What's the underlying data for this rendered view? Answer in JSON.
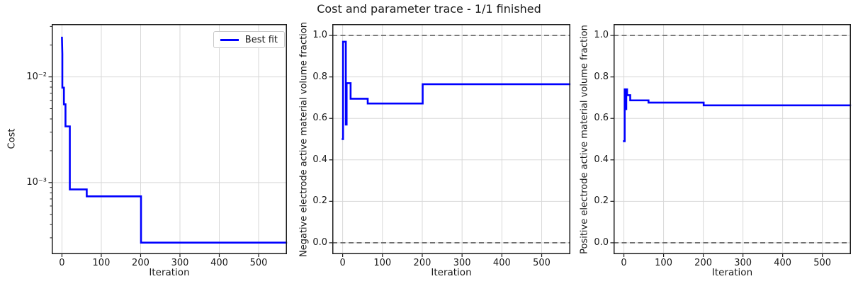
{
  "figure": {
    "title": "Cost and parameter trace - 1/1 finished",
    "background_color": "#ffffff",
    "text_color": "#1a1a1a",
    "grid_color": "#d8d8d8",
    "spine_color": "#1c1c1c",
    "bound_line_color": "#6f6f6f",
    "trace_color": "#0000ff"
  },
  "legend": {
    "label": "Best fit",
    "line_color": "#0000ff",
    "position": "upper right"
  },
  "chart_data": [
    {
      "type": "line",
      "title": "",
      "xlabel": "Iteration",
      "ylabel": "Cost",
      "yscale": "log",
      "grid": true,
      "xlim": [
        -26,
        572
      ],
      "ylim": [
        0.00021,
        0.0316
      ],
      "xticks": [
        {
          "value": 0,
          "label": "0"
        },
        {
          "value": 100,
          "label": "100"
        },
        {
          "value": 200,
          "label": "200"
        },
        {
          "value": 300,
          "label": "300"
        },
        {
          "value": 400,
          "label": "400"
        },
        {
          "value": 500,
          "label": "500"
        }
      ],
      "yticks": [
        {
          "value": 0.01,
          "label": "10⁻²"
        },
        {
          "value": 0.001,
          "label": "10⁻³"
        }
      ],
      "hlines": [],
      "legend": [
        "Best fit"
      ],
      "series": [
        {
          "name": "Best fit",
          "color": "#0000ff",
          "x": [
            0,
            1,
            1,
            5,
            5,
            9,
            9,
            20,
            20,
            63,
            63,
            201,
            201,
            570
          ],
          "y": [
            0.0235,
            0.0165,
            0.0079,
            0.0079,
            0.0055,
            0.0055,
            0.0034,
            0.0034,
            0.00086,
            0.00086,
            0.00074,
            0.00074,
            0.00027,
            0.00027
          ]
        }
      ]
    },
    {
      "type": "line",
      "title": "Cost and parameter trace - 1/1 finished",
      "xlabel": "Iteration",
      "ylabel": "Negative electrode active material volume fraction",
      "yscale": "linear",
      "grid": true,
      "xlim": [
        -26,
        572
      ],
      "ylim": [
        -0.055,
        1.055
      ],
      "xticks": [
        {
          "value": 0,
          "label": "0"
        },
        {
          "value": 100,
          "label": "100"
        },
        {
          "value": 200,
          "label": "200"
        },
        {
          "value": 300,
          "label": "300"
        },
        {
          "value": 400,
          "label": "400"
        },
        {
          "value": 500,
          "label": "500"
        }
      ],
      "yticks": [
        {
          "value": 0.0,
          "label": "0.0"
        },
        {
          "value": 0.2,
          "label": "0.2"
        },
        {
          "value": 0.4,
          "label": "0.4"
        },
        {
          "value": 0.6,
          "label": "0.6"
        },
        {
          "value": 0.8,
          "label": "0.8"
        },
        {
          "value": 1.0,
          "label": "1.0"
        }
      ],
      "hlines": [
        0.0,
        1.0
      ],
      "legend": [],
      "series": [
        {
          "name": "Negative electrode active material volume fraction",
          "color": "#0000ff",
          "x": [
            0,
            1,
            1,
            8,
            8,
            10,
            10,
            20,
            20,
            63,
            63,
            201,
            201,
            570
          ],
          "y": [
            0.5,
            0.5,
            0.97,
            0.97,
            0.57,
            0.57,
            0.77,
            0.77,
            0.695,
            0.695,
            0.672,
            0.672,
            0.765,
            0.765
          ]
        }
      ]
    },
    {
      "type": "line",
      "title": "",
      "xlabel": "Iteration",
      "ylabel": "Positive electrode active material volume fraction",
      "yscale": "linear",
      "grid": true,
      "xlim": [
        -26,
        572
      ],
      "ylim": [
        -0.055,
        1.055
      ],
      "xticks": [
        {
          "value": 0,
          "label": "0"
        },
        {
          "value": 100,
          "label": "100"
        },
        {
          "value": 200,
          "label": "200"
        },
        {
          "value": 300,
          "label": "300"
        },
        {
          "value": 400,
          "label": "400"
        },
        {
          "value": 500,
          "label": "500"
        }
      ],
      "yticks": [
        {
          "value": 0.0,
          "label": "0.0"
        },
        {
          "value": 0.2,
          "label": "0.2"
        },
        {
          "value": 0.4,
          "label": "0.4"
        },
        {
          "value": 0.6,
          "label": "0.6"
        },
        {
          "value": 0.8,
          "label": "0.8"
        },
        {
          "value": 1.0,
          "label": "1.0"
        }
      ],
      "hlines": [
        0.0,
        1.0
      ],
      "legend": [],
      "series": [
        {
          "name": "Positive electrode active material volume fraction",
          "color": "#0000ff",
          "x": [
            0,
            2,
            2,
            5,
            5,
            6,
            6,
            8,
            8,
            16,
            16,
            62,
            62,
            201,
            201,
            570
          ],
          "y": [
            0.49,
            0.49,
            0.74,
            0.74,
            0.645,
            0.645,
            0.74,
            0.74,
            0.712,
            0.712,
            0.687,
            0.687,
            0.676,
            0.676,
            0.663,
            0.663
          ]
        }
      ]
    }
  ]
}
